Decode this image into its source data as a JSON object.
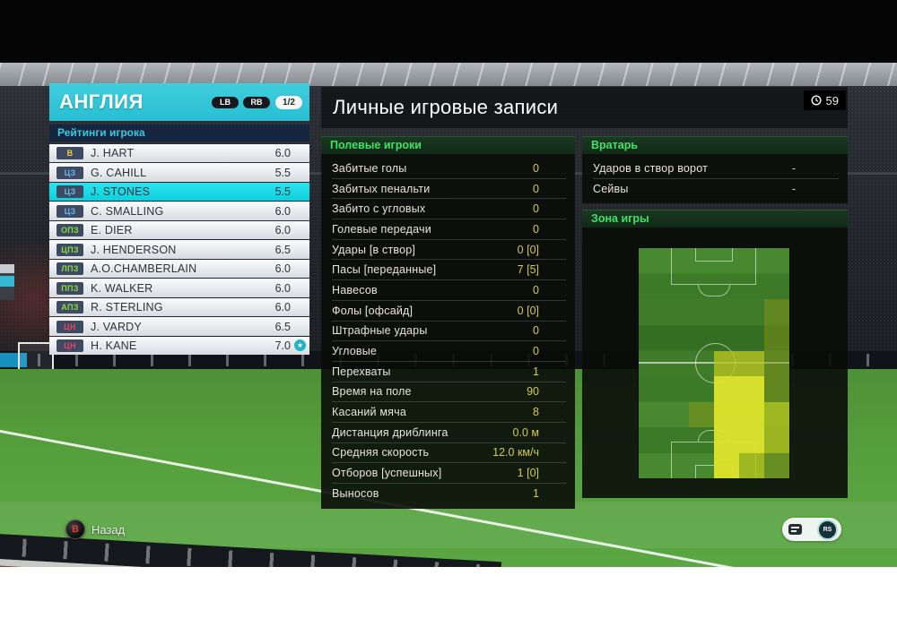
{
  "colors": {
    "accent_cyan": "#27bed3",
    "selected_row_cyan": "#11d9e6",
    "stat_value_yellow": "#d6c94b",
    "section_header_green": "#3ce466",
    "heat_low": "rgba(134,148,22,0.5)",
    "heat_mid": "rgba(183,196,30,0.78)",
    "heat_high": "rgba(222,229,43,0.95)",
    "pos_gk": "#e5d23e",
    "pos_df": "#62b9e9",
    "pos_mf": "#8bdc3c",
    "pos_fw": "#e4465e"
  },
  "team_panel": {
    "title": "АНГЛИЯ",
    "prev_button": "LB",
    "next_button": "RB",
    "page_indicator": "1/2",
    "subheader": "Рейтинги игрока",
    "players": [
      {
        "pos": "В",
        "role": "gk",
        "name": "J. HART",
        "rating": "6.0",
        "selected": false,
        "star": false
      },
      {
        "pos": "ЦЗ",
        "role": "df",
        "name": "G. CAHILL",
        "rating": "5.5",
        "selected": false,
        "star": false
      },
      {
        "pos": "ЦЗ",
        "role": "df",
        "name": "J. STONES",
        "rating": "5.5",
        "selected": true,
        "star": false
      },
      {
        "pos": "ЦЗ",
        "role": "df",
        "name": "C. SMALLING",
        "rating": "6.0",
        "selected": false,
        "star": false
      },
      {
        "pos": "ОПЗ",
        "role": "mf",
        "name": "E. DIER",
        "rating": "6.0",
        "selected": false,
        "star": false
      },
      {
        "pos": "ЦПЗ",
        "role": "mf",
        "name": "J. HENDERSON",
        "rating": "6.5",
        "selected": false,
        "star": false
      },
      {
        "pos": "ЛПЗ",
        "role": "mf",
        "name": "A.O.CHAMBERLAIN",
        "rating": "6.0",
        "selected": false,
        "star": false
      },
      {
        "pos": "ППЗ",
        "role": "mf",
        "name": "K. WALKER",
        "rating": "6.0",
        "selected": false,
        "star": false
      },
      {
        "pos": "АПЗ",
        "role": "mf",
        "name": "R. STERLING",
        "rating": "6.0",
        "selected": false,
        "star": false
      },
      {
        "pos": "ЦН",
        "role": "fw",
        "name": "J. VARDY",
        "rating": "6.5",
        "selected": false,
        "star": false
      },
      {
        "pos": "ЦН",
        "role": "fw",
        "name": "H. KANE",
        "rating": "7.0",
        "selected": false,
        "star": true
      }
    ]
  },
  "records_panel": {
    "title": "Личные игровые записи",
    "match_minute": "59",
    "outfield": {
      "header": "Полевые игроки",
      "stats": [
        {
          "label": "Забитые голы",
          "value": "0"
        },
        {
          "label": "Забитых пенальти",
          "value": "0"
        },
        {
          "label": "Забито с угловых",
          "value": "0"
        },
        {
          "label": "Голевые передачи",
          "value": "0"
        },
        {
          "label": "Удары [в створ]",
          "value": "0 [0]"
        },
        {
          "label": "Пасы [переданные]",
          "value": "7 [5]"
        },
        {
          "label": "Навесов",
          "value": "0"
        },
        {
          "label": "Фолы [офсайд]",
          "value": "0 [0]"
        },
        {
          "label": "Штрафные удары",
          "value": "0"
        },
        {
          "label": "Угловые",
          "value": "0"
        },
        {
          "label": "Перехваты",
          "value": "1"
        },
        {
          "label": "Время на поле",
          "value": "90"
        },
        {
          "label": "Касаний мяча",
          "value": "8"
        },
        {
          "label": "Дистанция дриблинга",
          "value": "0.0 м"
        },
        {
          "label": "Средняя скорость",
          "value": "12.0 км/ч"
        },
        {
          "label": "Отборов [успешных]",
          "value": "1 [0]"
        },
        {
          "label": "Выносов",
          "value": "1"
        }
      ]
    },
    "goalkeeper": {
      "header": "Вратарь",
      "stats": [
        {
          "label": "Ударов в створ ворот",
          "value": "-"
        },
        {
          "label": "Сейвы",
          "value": "-"
        }
      ]
    },
    "zone": {
      "header": "Зона игры",
      "heatmap": {
        "cols": 6,
        "rows": 9,
        "cells": [
          [
            0,
            0,
            0,
            0,
            0,
            0
          ],
          [
            0,
            0,
            0,
            0,
            0,
            0
          ],
          [
            0,
            0,
            0,
            0,
            0,
            1
          ],
          [
            0,
            0,
            0,
            0,
            0,
            1
          ],
          [
            0,
            0,
            0,
            2,
            2,
            1
          ],
          [
            0,
            0,
            0,
            3,
            3,
            1
          ],
          [
            0,
            0,
            1,
            3,
            3,
            2
          ],
          [
            0,
            0,
            0,
            3,
            3,
            2
          ],
          [
            0,
            0,
            0,
            3,
            2,
            1
          ]
        ]
      }
    }
  },
  "footer": {
    "back_button": "B",
    "back_label": "Назад",
    "stick_label": "RS"
  }
}
